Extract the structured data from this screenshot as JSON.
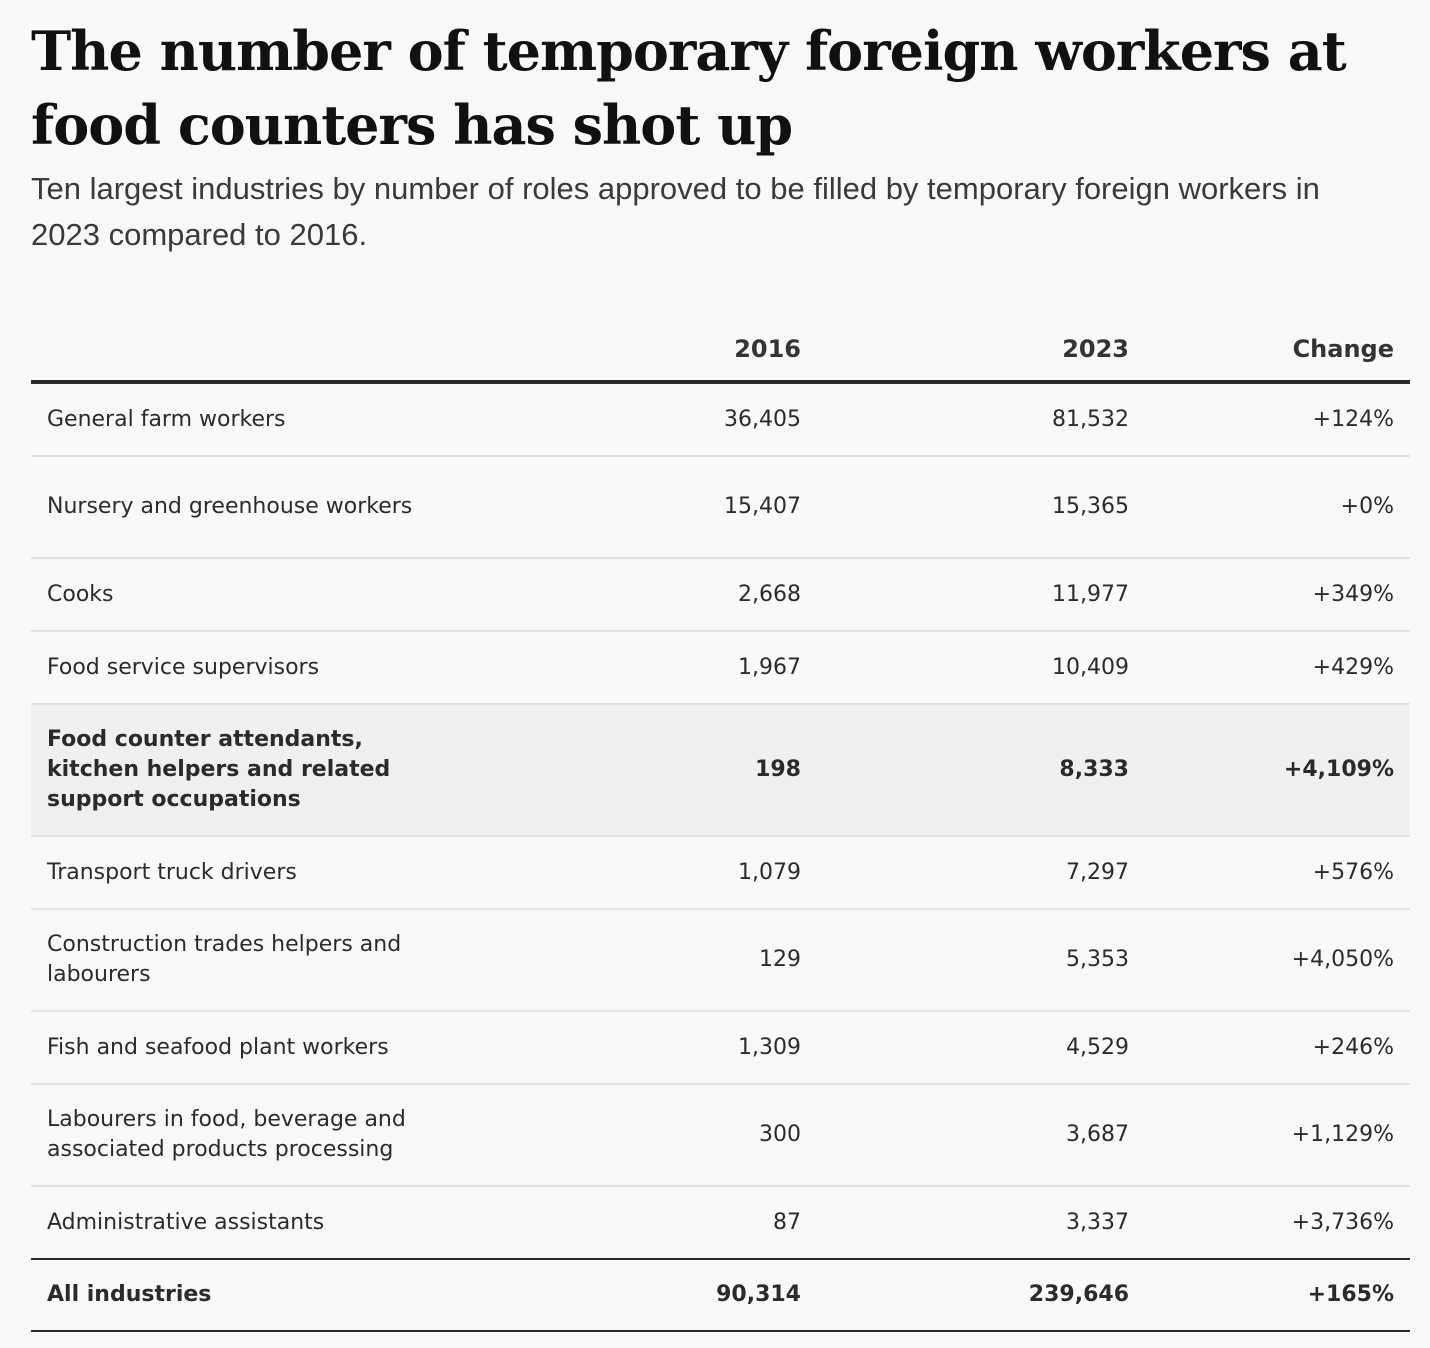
{
  "title": "The number of temporary foreign workers at food counters has shot up",
  "subtitle": "Ten largest industries by number of roles approved to be filled by temporary foreign workers in 2023 compared to 2016.",
  "chart_data": {
    "type": "table",
    "columns": [
      "",
      "2016",
      "2023",
      "Change"
    ],
    "rows": [
      {
        "label": "General farm workers",
        "y2016": "36,405",
        "y2023": "81,532",
        "change": "+124%"
      },
      {
        "label": "Nursery and greenhouse workers",
        "y2016": "15,407",
        "y2023": "15,365",
        "change": "+0%"
      },
      {
        "label": "Cooks",
        "y2016": "2,668",
        "y2023": "11,977",
        "change": "+349%"
      },
      {
        "label": "Food service supervisors",
        "y2016": "1,967",
        "y2023": "10,409",
        "change": "+429%"
      },
      {
        "label": "Food counter attendants, kitchen helpers and related support occupations",
        "y2016": "198",
        "y2023": "8,333",
        "change": "+4,109%",
        "highlighted": true
      },
      {
        "label": "Transport truck drivers",
        "y2016": "1,079",
        "y2023": "7,297",
        "change": "+576%"
      },
      {
        "label": "Construction trades helpers and labourers",
        "y2016": "129",
        "y2023": "5,353",
        "change": "+4,050%"
      },
      {
        "label": "Fish and seafood plant workers",
        "y2016": "1,309",
        "y2023": "4,529",
        "change": "+246%"
      },
      {
        "label": "Labourers in food, beverage and associated products processing",
        "y2016": "300",
        "y2023": "3,687",
        "change": "+1,129%"
      },
      {
        "label": "Administrative assistants",
        "y2016": "87",
        "y2023": "3,337",
        "change": "+3,736%"
      }
    ],
    "total": {
      "label": "All industries",
      "y2016": "90,314",
      "y2023": "239,646",
      "change": "+165%"
    }
  }
}
